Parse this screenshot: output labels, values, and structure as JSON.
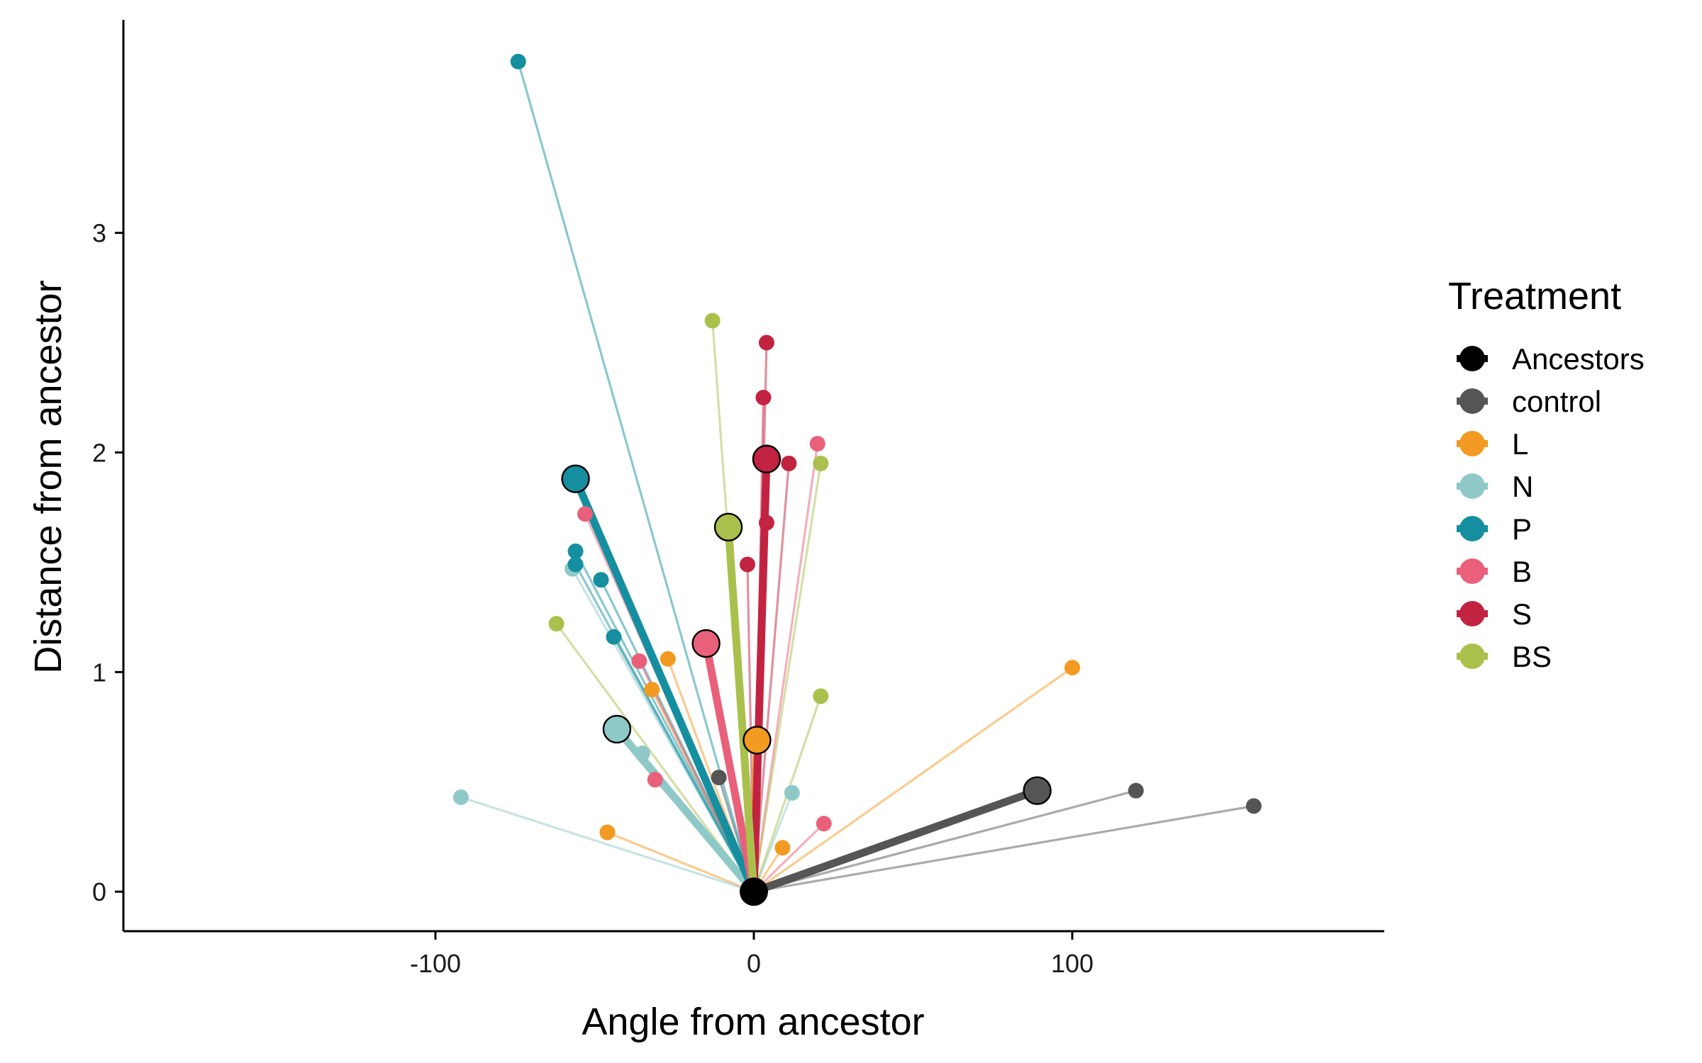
{
  "chart_data": {
    "type": "scatter",
    "xlabel": "Angle from ancestor",
    "ylabel": "Distance from ancestor",
    "xlim": [
      -198,
      198
    ],
    "ylim": [
      -0.18,
      3.97
    ],
    "xticks": [
      -100,
      0,
      100
    ],
    "yticks": [
      0,
      1,
      2,
      3
    ],
    "grid": false,
    "legend": {
      "title": "Treatment",
      "position": "right"
    },
    "origin": {
      "x": 0,
      "y": 0
    },
    "series": [
      {
        "name": "Ancestors",
        "color": "#000000",
        "mean": {
          "x": 0,
          "y": 0
        },
        "points": []
      },
      {
        "name": "control",
        "color": "#555555",
        "mean": {
          "x": 89,
          "y": 0.46
        },
        "points": [
          {
            "x": 120,
            "y": 0.46
          },
          {
            "x": 157,
            "y": 0.39
          },
          {
            "x": -11,
            "y": 0.52
          }
        ]
      },
      {
        "name": "L",
        "color": "#F39A22",
        "mean": {
          "x": 1,
          "y": 0.69
        },
        "points": [
          {
            "x": 100,
            "y": 1.02
          },
          {
            "x": -46,
            "y": 0.27
          },
          {
            "x": 9,
            "y": 0.2
          },
          {
            "x": -27,
            "y": 1.06
          },
          {
            "x": -32,
            "y": 0.92
          }
        ]
      },
      {
        "name": "N",
        "color": "#8EC9C8",
        "mean": {
          "x": -43,
          "y": 0.74
        },
        "points": [
          {
            "x": -92,
            "y": 0.43
          },
          {
            "x": -57,
            "y": 1.47
          },
          {
            "x": -35,
            "y": 0.63
          },
          {
            "x": 12,
            "y": 0.45
          }
        ]
      },
      {
        "name": "P",
        "color": "#158FA0",
        "mean": {
          "x": -56,
          "y": 1.88
        },
        "points": [
          {
            "x": -74,
            "y": 3.78
          },
          {
            "x": -56,
            "y": 1.55
          },
          {
            "x": -48,
            "y": 1.42
          },
          {
            "x": -44,
            "y": 1.16
          },
          {
            "x": -56,
            "y": 1.49
          }
        ]
      },
      {
        "name": "B",
        "color": "#E9607A",
        "mean": {
          "x": -15,
          "y": 1.13
        },
        "points": [
          {
            "x": 20,
            "y": 2.04
          },
          {
            "x": -53,
            "y": 1.72
          },
          {
            "x": 22,
            "y": 0.31
          },
          {
            "x": -36,
            "y": 1.05
          },
          {
            "x": -31,
            "y": 0.51
          }
        ]
      },
      {
        "name": "S",
        "color": "#C22341",
        "mean": {
          "x": 4,
          "y": 1.97
        },
        "points": [
          {
            "x": 4,
            "y": 2.5
          },
          {
            "x": 3,
            "y": 2.25
          },
          {
            "x": 11,
            "y": 1.95
          },
          {
            "x": 4,
            "y": 1.68
          },
          {
            "x": -2,
            "y": 1.49
          }
        ]
      },
      {
        "name": "BS",
        "color": "#A9C04C",
        "mean": {
          "x": -8,
          "y": 1.66
        },
        "points": [
          {
            "x": -13,
            "y": 2.6
          },
          {
            "x": 21,
            "y": 1.95
          },
          {
            "x": -62,
            "y": 1.22
          },
          {
            "x": 21,
            "y": 0.89
          }
        ]
      }
    ]
  }
}
